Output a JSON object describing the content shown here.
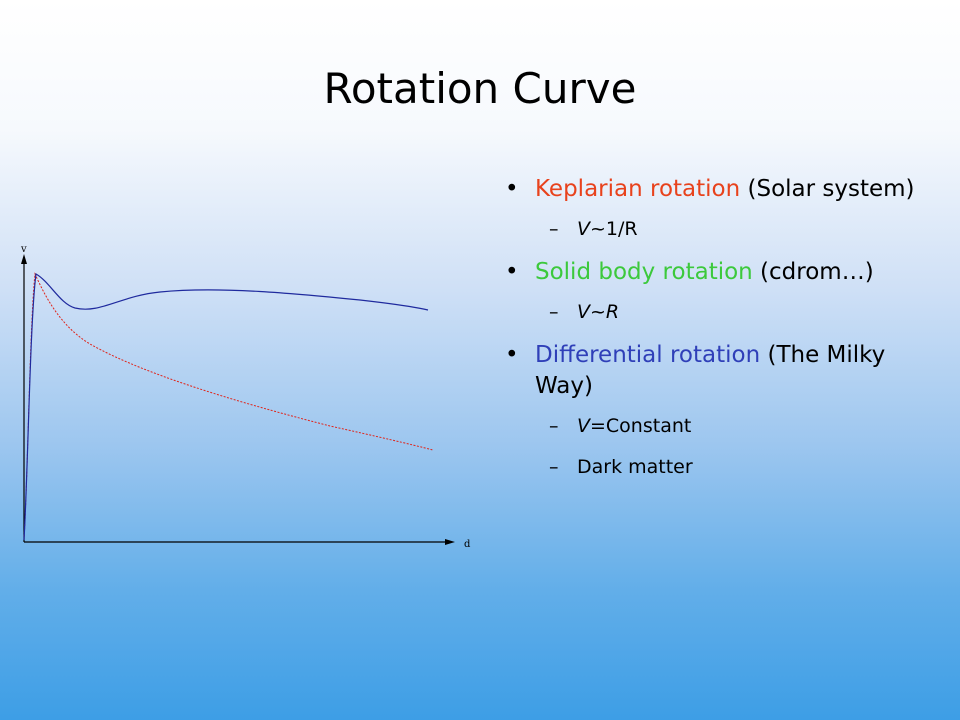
{
  "title": "Rotation Curve",
  "graph": {
    "y_axis_label": "v",
    "x_axis_label": "d",
    "colors": {
      "axes": "#000000",
      "flat_curve": "#1f2a9e",
      "keplerian_curve": "#e0241a"
    }
  },
  "colors": {
    "keplerian": "#e8421c",
    "solid": "#3cc93c",
    "differential": "#2f3fb8"
  },
  "bullets": [
    {
      "highlight": "Keplarian rotation",
      "rest": " (Solar system)",
      "subs": [
        {
          "lead": "V",
          "tail": "~1/R"
        }
      ]
    },
    {
      "highlight": "Solid body rotation",
      "rest": " (cdrom…)",
      "subs": [
        {
          "lead": "V",
          "tail": "~R"
        }
      ]
    },
    {
      "highlight": "Differential rotation",
      "rest": " (The Milky Way)",
      "subs": [
        {
          "lead": "V",
          "tail": "=Constant"
        },
        {
          "lead": "",
          "tail": "Dark matter"
        }
      ]
    }
  ]
}
